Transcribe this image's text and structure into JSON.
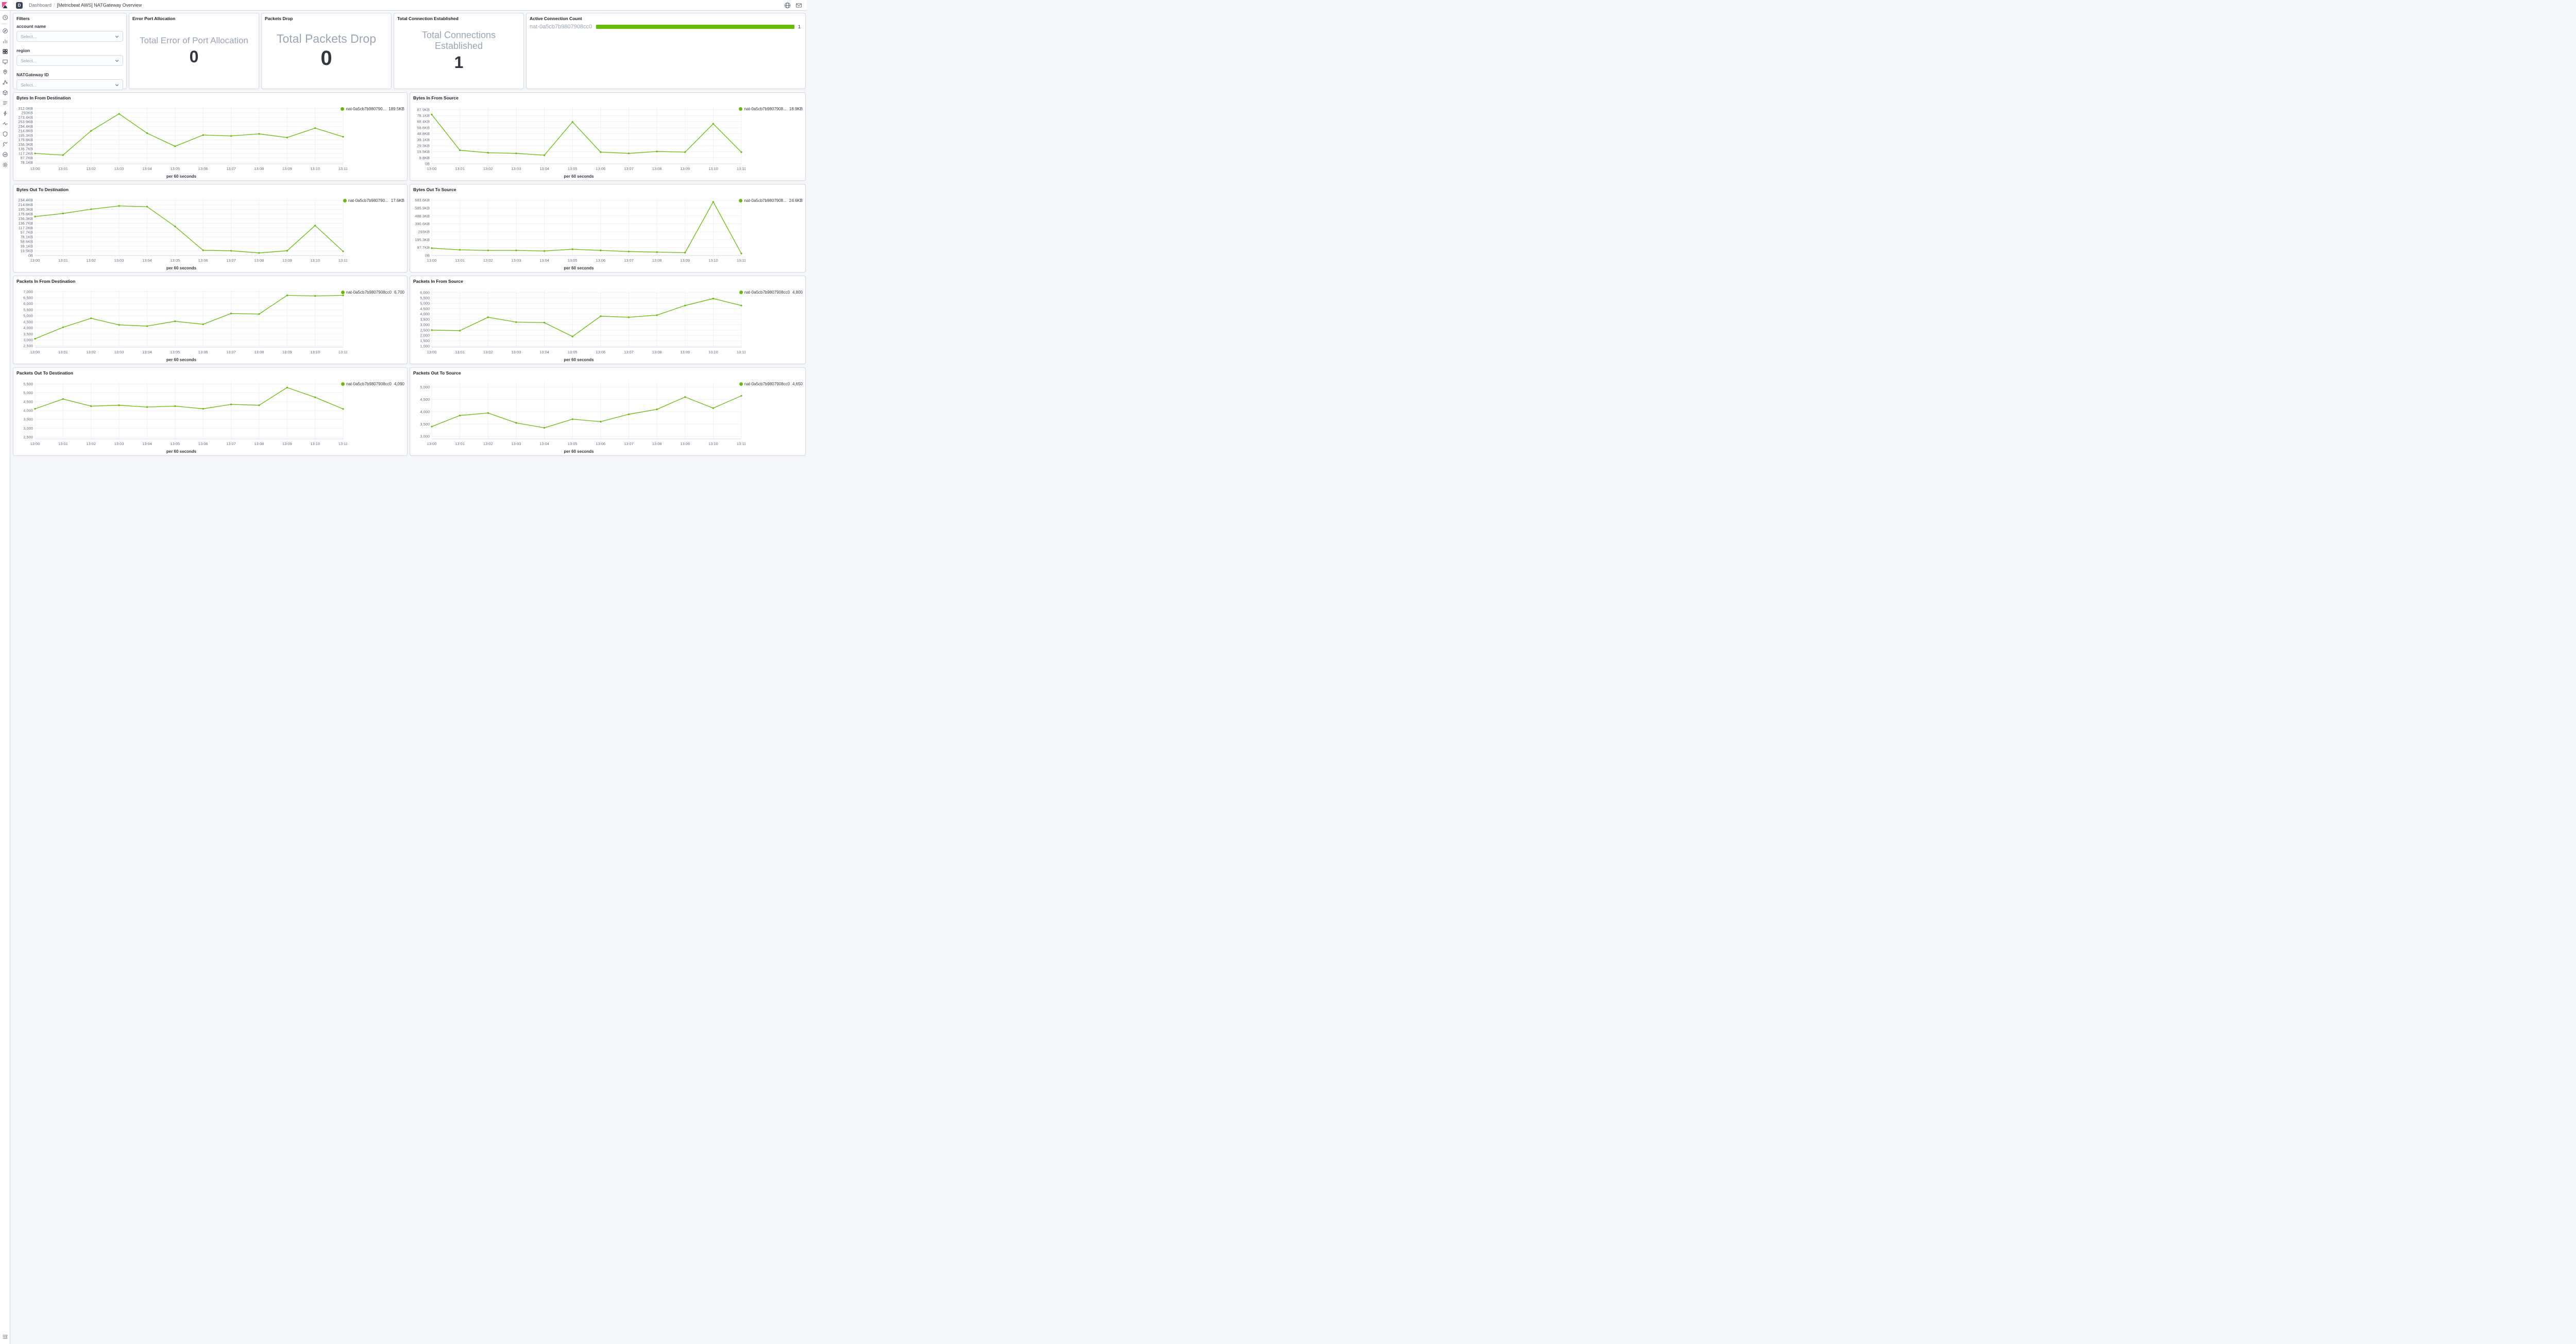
{
  "colors": {
    "series": "#68bc00",
    "bar": "#68bc00",
    "logo_pink": "#f04e98",
    "logo_dark": "#343741",
    "avatar_bg": "#36455c",
    "grid": "#eef1f5",
    "axis_text": "#69707d"
  },
  "header": {
    "space_initial": "D",
    "breadcrumb_dashboard": "Dashboard",
    "breadcrumb_separator": "/",
    "breadcrumb_current": "[Metricbeat AWS] NATGateway Overview",
    "right_icons": [
      "globe-icon",
      "mail-icon"
    ]
  },
  "sidebar": {
    "items": [
      "recently-viewed",
      "discover",
      "visualize",
      "dashboard",
      "canvas",
      "maps",
      "machine-learning",
      "metrics",
      "logs",
      "apm",
      "uptime",
      "siem",
      "dev-tools",
      "stack-monitoring",
      "management"
    ],
    "active_item": "dashboard",
    "bottom_icon": "collapse-menu"
  },
  "filters": {
    "title": "Filters",
    "fields": [
      {
        "label": "account name",
        "placeholder": "Select..."
      },
      {
        "label": "region",
        "placeholder": "Select..."
      },
      {
        "label": "NATGateway ID",
        "placeholder": "Select..."
      }
    ]
  },
  "metrics": [
    {
      "panel_title": "Error Port Allocation",
      "label": "Total Error of Port Allocation",
      "value": "0"
    },
    {
      "panel_title": "Packets Drop",
      "label": "Total Packets Drop",
      "value": "0"
    },
    {
      "panel_title": "Total Connection Established",
      "label": "Total Connections Established",
      "value": "1"
    }
  ],
  "active_connection": {
    "panel_title": "Active Connection Count",
    "label": "nat-0a5cb7b9807908cc0",
    "value": "1"
  },
  "chart_data": [
    {
      "type": "line",
      "title": "Bytes In From Destination",
      "legend_label": "nat-0a5cb7b980790...",
      "legend_value": "189.5KB",
      "xlabel": "per 60 seconds",
      "categories": [
        "13:00",
        "13:01",
        "13:02",
        "13:03",
        "13:04",
        "13:05",
        "13:06",
        "13:07",
        "13:08",
        "13:09",
        "13:10",
        "13:11"
      ],
      "values": [
        117,
        110,
        215,
        289,
        205,
        148,
        197,
        193,
        202,
        186,
        227,
        189.5
      ],
      "unit": "KB",
      "ylim": [
        72,
        318
      ],
      "y_tick_labels": [
        "312.0KB",
        "293KB",
        "273.4KB",
        "253.9KB",
        "234.4KB",
        "214.8KB",
        "195.3KB",
        "175.8KB",
        "156.3KB",
        "136.7KB",
        "117.2KB",
        "97.7KB",
        "78.1KB"
      ],
      "y_tick_values": [
        312,
        293,
        273.4,
        253.9,
        234.4,
        214.8,
        195.3,
        175.8,
        156.3,
        136.7,
        117.2,
        97.7,
        78.1
      ]
    },
    {
      "type": "line",
      "title": "Bytes In From Source",
      "legend_label": "nat-0a5cb7b9807908...",
      "legend_value": "18.9KB",
      "xlabel": "per 60 seconds",
      "categories": [
        "13:00",
        "13:01",
        "13:02",
        "13:03",
        "13:04",
        "13:05",
        "13:06",
        "13:07",
        "13:08",
        "13:09",
        "13:10",
        "13:11"
      ],
      "values": [
        80,
        22,
        18,
        17,
        14,
        68,
        19,
        17,
        20,
        19,
        65,
        18.9
      ],
      "unit": "KB",
      "ylim": [
        0,
        92
      ],
      "y_tick_labels": [
        "87.9KB",
        "78.1KB",
        "68.4KB",
        "58.6KB",
        "48.8KB",
        "39.1KB",
        "29.3KB",
        "19.5KB",
        "9.8KB",
        "0B"
      ],
      "y_tick_values": [
        87.9,
        78.1,
        68.4,
        58.6,
        48.8,
        39.1,
        29.3,
        19.5,
        9.8,
        0
      ]
    },
    {
      "type": "line",
      "title": "Bytes Out To Destination",
      "legend_label": "nat-0a5cb7b980790...",
      "legend_value": "17.6KB",
      "xlabel": "per 60 seconds",
      "categories": [
        "13:00",
        "13:01",
        "13:02",
        "13:03",
        "13:04",
        "13:05",
        "13:06",
        "13:07",
        "13:08",
        "13:09",
        "13:10",
        "13:11"
      ],
      "values": [
        165,
        178,
        196,
        210,
        207,
        123,
        22,
        20,
        11,
        20,
        127,
        17.6
      ],
      "unit": "KB",
      "ylim": [
        0,
        240
      ],
      "y_tick_labels": [
        "234.4KB",
        "214.8KB",
        "195.3KB",
        "175.8KB",
        "156.3KB",
        "136.7KB",
        "117.2KB",
        "97.7KB",
        "78.1KB",
        "58.6KB",
        "39.1KB",
        "19.5KB",
        "0B"
      ],
      "y_tick_values": [
        234.4,
        214.8,
        195.3,
        175.8,
        156.3,
        136.7,
        117.2,
        97.7,
        78.1,
        58.6,
        39.1,
        19.5,
        0
      ]
    },
    {
      "type": "line",
      "title": "Bytes Out To Source",
      "legend_label": "nat-0a5cb7b9807908...",
      "legend_value": "24.6KB",
      "xlabel": "per 60 seconds",
      "categories": [
        "13:00",
        "13:01",
        "13:02",
        "13:03",
        "13:04",
        "13:05",
        "13:06",
        "13:07",
        "13:08",
        "13:09",
        "13:10",
        "13:11"
      ],
      "values": [
        91,
        70,
        63,
        63,
        56,
        77,
        63,
        49,
        42,
        35,
        663,
        24.6
      ],
      "unit": "KB",
      "ylim": [
        0,
        700
      ],
      "y_tick_labels": [
        "683.6KB",
        "585.9KB",
        "488.3KB",
        "390.6KB",
        "293KB",
        "195.3KB",
        "97.7KB",
        "0B"
      ],
      "y_tick_values": [
        683.6,
        585.9,
        488.3,
        390.6,
        293,
        195.3,
        97.7,
        0
      ]
    },
    {
      "type": "line",
      "title": "Packets In From Destination",
      "legend_label": "nat-0a5cb7b9807908cc0",
      "legend_value": "6,700",
      "xlabel": "per 60 seconds",
      "categories": [
        "13:00",
        "13:01",
        "13:02",
        "13:03",
        "13:04",
        "13:05",
        "13:06",
        "13:07",
        "13:08",
        "13:09",
        "13:10",
        "13:11"
      ],
      "values": [
        3100,
        4050,
        4800,
        4250,
        4150,
        4550,
        4300,
        5200,
        5150,
        6700,
        6650,
        6700
      ],
      "unit": "packets",
      "ylim": [
        2400,
        7100
      ],
      "y_tick_labels": [
        "7,000",
        "6,500",
        "6,000",
        "5,500",
        "5,000",
        "4,500",
        "4,000",
        "3,500",
        "3,000",
        "2,500"
      ],
      "y_tick_values": [
        7000,
        6500,
        6000,
        5500,
        5000,
        4500,
        4000,
        3500,
        3000,
        2500
      ]
    },
    {
      "type": "line",
      "title": "Packets In From Source",
      "legend_label": "nat-0a5cb7b9807908cc0",
      "legend_value": "4,800",
      "xlabel": "per 60 seconds",
      "categories": [
        "13:00",
        "13:01",
        "13:02",
        "13:03",
        "13:04",
        "13:05",
        "13:06",
        "13:07",
        "13:08",
        "13:09",
        "13:10",
        "13:11"
      ],
      "values": [
        2500,
        2450,
        3700,
        3250,
        3200,
        1900,
        3800,
        3700,
        3900,
        4800,
        5450,
        4800
      ],
      "unit": "packets",
      "ylim": [
        900,
        6200
      ],
      "y_tick_labels": [
        "6,000",
        "5,500",
        "5,000",
        "4,500",
        "4,000",
        "3,500",
        "3,000",
        "2,500",
        "2,000",
        "1,500",
        "1,000"
      ],
      "y_tick_values": [
        6000,
        5500,
        5000,
        4500,
        4000,
        3500,
        3000,
        2500,
        2000,
        1500,
        1000
      ]
    },
    {
      "type": "line",
      "title": "Packets Out To Destination",
      "legend_label": "nat-0a5cb7b9807908cc0",
      "legend_value": "4,090",
      "xlabel": "per 60 seconds",
      "categories": [
        "13:00",
        "13:01",
        "13:02",
        "13:03",
        "13:04",
        "13:05",
        "13:06",
        "13:07",
        "13:08",
        "13:09",
        "13:10",
        "13:11"
      ],
      "values": [
        4100,
        4650,
        4250,
        4300,
        4200,
        4250,
        4100,
        4350,
        4300,
        5300,
        4750,
        4090
      ],
      "unit": "packets",
      "ylim": [
        2400,
        5600
      ],
      "y_tick_labels": [
        "5,500",
        "5,000",
        "4,500",
        "4,000",
        "3,500",
        "3,000",
        "2,500"
      ],
      "y_tick_values": [
        5500,
        5000,
        4500,
        4000,
        3500,
        3000,
        2500
      ]
    },
    {
      "type": "line",
      "title": "Packets Out To Source",
      "legend_label": "nat-0a5cb7b9807908cc0",
      "legend_value": "4,650",
      "xlabel": "per 60 seconds",
      "categories": [
        "13:00",
        "13:01",
        "13:02",
        "13:03",
        "13:04",
        "13:05",
        "13:06",
        "13:07",
        "13:08",
        "13:09",
        "13:10",
        "13:11"
      ],
      "values": [
        3400,
        3850,
        3950,
        3550,
        3350,
        3700,
        3600,
        3900,
        4100,
        4600,
        4150,
        4650
      ],
      "unit": "packets",
      "ylim": [
        2900,
        5200
      ],
      "y_tick_labels": [
        "5,000",
        "4,500",
        "4,000",
        "3,500",
        "3,000"
      ],
      "y_tick_values": [
        5000,
        4500,
        4000,
        3500,
        3000
      ]
    }
  ]
}
